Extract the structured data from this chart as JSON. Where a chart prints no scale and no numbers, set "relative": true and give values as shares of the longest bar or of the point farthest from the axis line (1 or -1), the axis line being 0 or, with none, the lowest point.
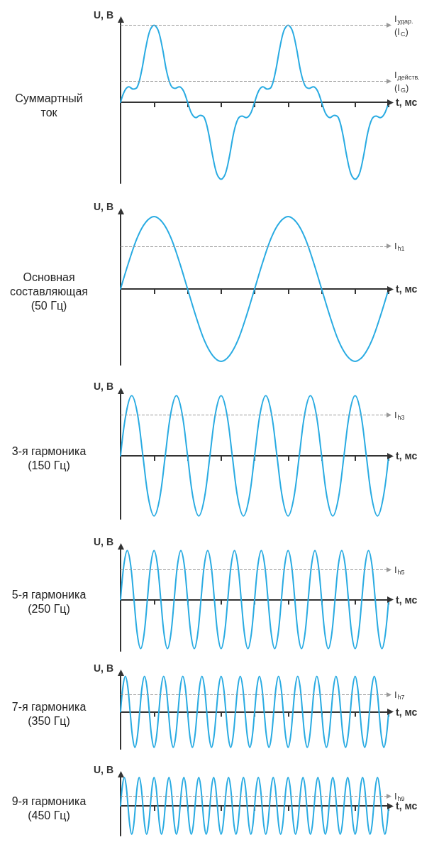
{
  "chart_data": [
    {
      "type": "line",
      "title": "Суммартный\nток",
      "ylabel": "U, В",
      "xlabel": "t, мс",
      "relative": true,
      "marker": "none",
      "line_style": "solid",
      "categories": [
        null,
        null,
        null,
        null,
        null,
        null,
        null,
        null,
        null,
        null,
        null,
        null,
        null,
        null,
        null,
        null,
        null,
        null,
        null,
        null,
        null,
        null,
        null,
        null,
        null,
        null,
        null,
        null,
        null,
        null,
        null,
        null,
        null,
        null,
        null,
        null,
        null,
        null,
        null,
        null,
        null,
        null,
        null,
        null,
        null,
        null,
        null,
        null,
        null,
        null,
        null,
        null,
        null,
        null,
        null,
        null,
        null,
        null,
        null,
        null,
        null,
        null,
        null,
        null,
        null
      ],
      "series": [
        {
          "color": "#29abe2",
          "values": [
            0,
            0.15,
            0.2,
            0.17,
            0.2,
            0.4,
            0.7,
            0.93,
            1,
            0.93,
            0.7,
            0.4,
            0.22,
            0.18,
            0.2,
            0.15,
            0,
            -0.15,
            -0.2,
            -0.17,
            -0.2,
            -0.4,
            -0.7,
            -0.93,
            -1,
            -0.93,
            -0.7,
            -0.4,
            -0.22,
            -0.18,
            -0.2,
            -0.15,
            0,
            0.15,
            0.2,
            0.17,
            0.2,
            0.4,
            0.7,
            0.93,
            1,
            0.93,
            0.7,
            0.4,
            0.22,
            0.18,
            0.2,
            0.15,
            0,
            -0.15,
            -0.2,
            -0.17,
            -0.2,
            -0.4,
            -0.7,
            -0.93,
            -1,
            -0.93,
            -0.7,
            -0.4,
            -0.22,
            -0.18,
            -0.2,
            -0.15,
            0
          ]
        }
      ],
      "ref_lines": [
        {
          "axis": "y",
          "value": 1,
          "label": "I$_{удар.}$\n(I$_{C}$)",
          "color": "#999999",
          "line_style": "dashed"
        },
        {
          "axis": "y",
          "value": 0.27,
          "label": "I$_{действ.}$\n(I$_{G}$)",
          "color": "#999999",
          "line_style": "dashed"
        }
      ]
    },
    {
      "type": "line",
      "title": "Основная\nсоставляющая\n(50 Гц)",
      "ylabel": "U, В",
      "xlabel": "t, мс",
      "relative": true,
      "marker": "none",
      "line_style": "solid",
      "categories": [
        null,
        null,
        null,
        null,
        null,
        null,
        null,
        null,
        null,
        null,
        null,
        null,
        null,
        null,
        null,
        null,
        null,
        null,
        null,
        null,
        null,
        null,
        null,
        null,
        null,
        null,
        null,
        null,
        null,
        null,
        null,
        null,
        null
      ],
      "series": [
        {
          "color": "#29abe2",
          "values": [
            0,
            0.38,
            0.71,
            0.92,
            1,
            0.92,
            0.71,
            0.38,
            0,
            -0.38,
            -0.71,
            -0.92,
            -1,
            -0.92,
            -0.71,
            -0.38,
            0,
            0.38,
            0.71,
            0.92,
            1,
            0.92,
            0.71,
            0.38,
            0,
            -0.38,
            -0.71,
            -0.92,
            -1,
            -0.92,
            -0.71,
            -0.38,
            0
          ]
        }
      ],
      "ref_lines": [
        {
          "axis": "y",
          "value": 0.59,
          "label": "I$_{h1}$",
          "color": "#999999",
          "line_style": "dashed"
        }
      ]
    },
    {
      "type": "line",
      "title": "3-я гармоника\n(150 Гц)",
      "ylabel": "U, В",
      "xlabel": "t, мс",
      "relative": true,
      "marker": "none",
      "line_style": "solid",
      "categories": [
        null,
        null,
        null,
        null,
        null,
        null,
        null,
        null,
        null,
        null,
        null,
        null,
        null,
        null,
        null,
        null,
        null,
        null,
        null,
        null,
        null,
        null,
        null,
        null,
        null,
        null,
        null,
        null,
        null,
        null,
        null,
        null,
        null,
        null,
        null,
        null,
        null,
        null,
        null,
        null,
        null,
        null,
        null,
        null,
        null,
        null,
        null,
        null,
        null
      ],
      "series": [
        {
          "color": "#29abe2",
          "values": [
            0,
            0.71,
            1,
            0.71,
            0,
            -0.71,
            -1,
            -0.71,
            0,
            0.71,
            1,
            0.71,
            0,
            -0.71,
            -1,
            -0.71,
            0,
            0.71,
            1,
            0.71,
            0,
            -0.71,
            -1,
            -0.71,
            0,
            0.71,
            1,
            0.71,
            0,
            -0.71,
            -1,
            -0.71,
            0,
            0.71,
            1,
            0.71,
            0,
            -0.71,
            -1,
            -0.71,
            0,
            0.71,
            1,
            0.71,
            0,
            -0.71,
            -1,
            -0.71,
            0
          ]
        }
      ],
      "ref_lines": [
        {
          "axis": "y",
          "value": 0.68,
          "label": "I$_{h3}$",
          "color": "#999999",
          "line_style": "dashed"
        }
      ]
    },
    {
      "type": "line",
      "title": "5-я гармоника\n(250 Гц)",
      "ylabel": "U, В",
      "xlabel": "t, мс",
      "relative": true,
      "marker": "none",
      "line_style": "solid",
      "categories": [
        null,
        null,
        null,
        null,
        null,
        null,
        null,
        null,
        null,
        null,
        null,
        null,
        null,
        null,
        null,
        null,
        null,
        null,
        null,
        null,
        null,
        null,
        null,
        null,
        null,
        null,
        null,
        null,
        null,
        null,
        null,
        null,
        null,
        null,
        null,
        null,
        null,
        null,
        null,
        null,
        null,
        null,
        null,
        null,
        null,
        null,
        null,
        null,
        null,
        null,
        null,
        null,
        null,
        null,
        null,
        null,
        null,
        null,
        null,
        null,
        null,
        null,
        null,
        null,
        null,
        null,
        null,
        null,
        null,
        null,
        null,
        null,
        null,
        null,
        null,
        null,
        null,
        null,
        null,
        null,
        null
      ],
      "series": [
        {
          "color": "#29abe2",
          "values": [
            0,
            0.71,
            1,
            0.71,
            0,
            -0.71,
            -1,
            -0.71,
            0,
            0.71,
            1,
            0.71,
            0,
            -0.71,
            -1,
            -0.71,
            0,
            0.71,
            1,
            0.71,
            0,
            -0.71,
            -1,
            -0.71,
            0,
            0.71,
            1,
            0.71,
            0,
            -0.71,
            -1,
            -0.71,
            0,
            0.71,
            1,
            0.71,
            0,
            -0.71,
            -1,
            -0.71,
            0,
            0.71,
            1,
            0.71,
            0,
            -0.71,
            -1,
            -0.71,
            0,
            0.71,
            1,
            0.71,
            0,
            -0.71,
            -1,
            -0.71,
            0,
            0.71,
            1,
            0.71,
            0,
            -0.71,
            -1,
            -0.71,
            0,
            0.71,
            1,
            0.71,
            0,
            -0.71,
            -1,
            -0.71,
            0,
            0.71,
            1,
            0.71,
            0,
            -0.71,
            -1,
            -0.71,
            0
          ]
        }
      ],
      "ref_lines": [
        {
          "axis": "y",
          "value": 0.61,
          "label": "I$_{h5}$",
          "color": "#999999",
          "line_style": "dashed"
        }
      ]
    },
    {
      "type": "line",
      "title": "7-я гармоника\n(350 Гц)",
      "ylabel": "U, В",
      "xlabel": "t, мс",
      "relative": true,
      "marker": "none",
      "line_style": "solid",
      "categories": [
        null,
        null,
        null,
        null,
        null,
        null,
        null,
        null,
        null,
        null,
        null,
        null,
        null,
        null,
        null,
        null,
        null,
        null,
        null,
        null,
        null,
        null,
        null,
        null,
        null,
        null,
        null,
        null,
        null,
        null,
        null,
        null,
        null,
        null,
        null,
        null,
        null,
        null,
        null,
        null,
        null,
        null,
        null,
        null,
        null,
        null,
        null,
        null,
        null,
        null,
        null,
        null,
        null,
        null,
        null,
        null,
        null,
        null,
        null,
        null,
        null,
        null,
        null,
        null,
        null,
        null,
        null,
        null,
        null,
        null,
        null,
        null,
        null,
        null,
        null,
        null,
        null,
        null,
        null,
        null,
        null,
        null,
        null,
        null,
        null,
        null,
        null,
        null,
        null,
        null,
        null,
        null,
        null,
        null,
        null,
        null,
        null,
        null,
        null,
        null,
        null,
        null,
        null,
        null,
        null,
        null,
        null,
        null,
        null,
        null,
        null,
        null,
        null
      ],
      "series": [
        {
          "color": "#29abe2",
          "values": [
            0,
            0.71,
            1,
            0.71,
            0,
            -0.71,
            -1,
            -0.71,
            0,
            0.71,
            1,
            0.71,
            0,
            -0.71,
            -1,
            -0.71,
            0,
            0.71,
            1,
            0.71,
            0,
            -0.71,
            -1,
            -0.71,
            0,
            0.71,
            1,
            0.71,
            0,
            -0.71,
            -1,
            -0.71,
            0,
            0.71,
            1,
            0.71,
            0,
            -0.71,
            -1,
            -0.71,
            0,
            0.71,
            1,
            0.71,
            0,
            -0.71,
            -1,
            -0.71,
            0,
            0.71,
            1,
            0.71,
            0,
            -0.71,
            -1,
            -0.71,
            0,
            0.71,
            1,
            0.71,
            0,
            -0.71,
            -1,
            -0.71,
            0,
            0.71,
            1,
            0.71,
            0,
            -0.71,
            -1,
            -0.71,
            0,
            0.71,
            1,
            0.71,
            0,
            -0.71,
            -1,
            -0.71,
            0,
            0.71,
            1,
            0.71,
            0,
            -0.71,
            -1,
            -0.71,
            0,
            0.71,
            1,
            0.71,
            0,
            -0.71,
            -1,
            -0.71,
            0,
            0.71,
            1,
            0.71,
            0,
            -0.71,
            -1,
            -0.71,
            0,
            0.71,
            1,
            0.71,
            0,
            -0.71,
            -1,
            -0.71,
            0
          ]
        }
      ],
      "ref_lines": [
        {
          "axis": "y",
          "value": 0.48,
          "label": "I$_{h7}$",
          "color": "#999999",
          "line_style": "dashed"
        }
      ]
    },
    {
      "type": "line",
      "title": "9-я гармоника\n(450 Гц)",
      "ylabel": "U, В",
      "xlabel": "t, мс",
      "relative": true,
      "marker": "none",
      "line_style": "solid",
      "categories": [
        null,
        null,
        null,
        null,
        null,
        null,
        null,
        null,
        null,
        null,
        null,
        null,
        null,
        null,
        null,
        null,
        null,
        null,
        null,
        null,
        null,
        null,
        null,
        null,
        null,
        null,
        null,
        null,
        null,
        null,
        null,
        null,
        null,
        null,
        null,
        null,
        null,
        null,
        null,
        null,
        null,
        null,
        null,
        null,
        null,
        null,
        null,
        null,
        null,
        null,
        null,
        null,
        null,
        null,
        null,
        null,
        null,
        null,
        null,
        null,
        null,
        null,
        null,
        null,
        null,
        null,
        null,
        null,
        null,
        null,
        null,
        null,
        null,
        null,
        null,
        null,
        null,
        null,
        null,
        null,
        null,
        null,
        null,
        null,
        null,
        null,
        null,
        null,
        null,
        null,
        null,
        null,
        null,
        null,
        null,
        null,
        null,
        null,
        null,
        null,
        null,
        null,
        null,
        null,
        null,
        null,
        null,
        null,
        null,
        null,
        null,
        null,
        null,
        null,
        null,
        null,
        null,
        null,
        null,
        null,
        null,
        null,
        null,
        null,
        null,
        null,
        null,
        null,
        null,
        null,
        null,
        null,
        null,
        null,
        null,
        null,
        null,
        null,
        null,
        null,
        null,
        null,
        null,
        null,
        null
      ],
      "series": [
        {
          "color": "#29abe2",
          "values": [
            0,
            0.71,
            1,
            0.71,
            0,
            -0.71,
            -1,
            -0.71,
            0,
            0.71,
            1,
            0.71,
            0,
            -0.71,
            -1,
            -0.71,
            0,
            0.71,
            1,
            0.71,
            0,
            -0.71,
            -1,
            -0.71,
            0,
            0.71,
            1,
            0.71,
            0,
            -0.71,
            -1,
            -0.71,
            0,
            0.71,
            1,
            0.71,
            0,
            -0.71,
            -1,
            -0.71,
            0,
            0.71,
            1,
            0.71,
            0,
            -0.71,
            -1,
            -0.71,
            0,
            0.71,
            1,
            0.71,
            0,
            -0.71,
            -1,
            -0.71,
            0,
            0.71,
            1,
            0.71,
            0,
            -0.71,
            -1,
            -0.71,
            0,
            0.71,
            1,
            0.71,
            0,
            -0.71,
            -1,
            -0.71,
            0,
            0.71,
            1,
            0.71,
            0,
            -0.71,
            -1,
            -0.71,
            0,
            0.71,
            1,
            0.71,
            0,
            -0.71,
            -1,
            -0.71,
            0,
            0.71,
            1,
            0.71,
            0,
            -0.71,
            -1,
            -0.71,
            0,
            0.71,
            1,
            0.71,
            0,
            -0.71,
            -1,
            -0.71,
            0,
            0.71,
            1,
            0.71,
            0,
            -0.71,
            -1,
            -0.71,
            0,
            0.71,
            1,
            0.71,
            0,
            -0.71,
            -1,
            -0.71,
            0,
            0.71,
            1,
            0.71,
            0,
            -0.71,
            -1,
            -0.71,
            0,
            0.71,
            1,
            0.71,
            0,
            -0.71,
            -1,
            -0.71,
            0,
            0.71,
            1,
            0.71,
            0,
            -0.71,
            -1,
            -0.71,
            0
          ]
        }
      ],
      "ref_lines": [
        {
          "axis": "y",
          "value": 0.35,
          "label": "I$_{h9}$",
          "color": "#999999",
          "line_style": "dashed"
        }
      ]
    }
  ]
}
